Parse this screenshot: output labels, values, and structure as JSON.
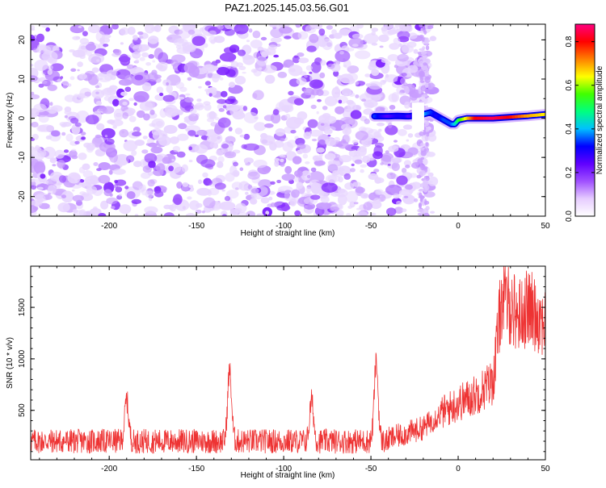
{
  "title": "PAZ1.2025.145.03.56.G01",
  "chart_data": [
    {
      "type": "heatmap",
      "title": "PAZ1.2025.145.03.56.G01",
      "xlabel": "Height of straight line (km)",
      "ylabel": "Frequency (Hz)",
      "xlim": [
        -245,
        50
      ],
      "ylim": [
        -25,
        24
      ],
      "xticks": [
        -200,
        -150,
        -100,
        -50,
        0,
        50
      ],
      "yticks": [
        -20,
        -10,
        0,
        10,
        20
      ],
      "colorbar": {
        "label": "Normalized spectral amplitude",
        "range": [
          0,
          0.88
        ],
        "ticks": [
          0.0,
          0.2,
          0.4,
          0.6,
          0.8
        ],
        "colormap": [
          "#ffffff",
          "#e6ccff",
          "#a050ff",
          "#6000ff",
          "#0000ff",
          "#00c0ff",
          "#00ff80",
          "#40ff00",
          "#ffff00",
          "#ff8000",
          "#ff0000",
          "#ff0080"
        ]
      },
      "noise_region": {
        "x": [
          -245,
          -18
        ],
        "amplitude": 0.08
      },
      "signal_ridge": {
        "x": [
          -48,
          -44,
          -40,
          -35,
          -30,
          -28,
          -20,
          -16,
          -12,
          -8,
          -4,
          -2,
          0,
          5,
          10,
          20,
          30,
          40,
          50
        ],
        "frequency": [
          0.5,
          0.5,
          0.5,
          0.6,
          0.5,
          0.5,
          1.0,
          1.5,
          0.5,
          -0.5,
          -1.5,
          -1.5,
          -0.5,
          0,
          0,
          0,
          0.3,
          0.6,
          1.0
        ],
        "amplitude": [
          0.35,
          0.3,
          0.25,
          0.3,
          0.3,
          0.25,
          0.4,
          0.35,
          0.3,
          0.35,
          0.35,
          0.4,
          0.5,
          0.65,
          0.8,
          0.85,
          0.8,
          0.7,
          0.65
        ]
      }
    },
    {
      "type": "line",
      "xlabel": "Height of straight line (km)",
      "ylabel": "SNR (10 * v/v)",
      "xlim": [
        -245,
        50
      ],
      "ylim": [
        20,
        1900
      ],
      "xticks": [
        -200,
        -150,
        -100,
        -50,
        0,
        50
      ],
      "yticks": [
        500,
        1000,
        1500
      ],
      "color": "#ee3333",
      "baseline": 200,
      "noise_amplitude": 120,
      "peaks": [
        {
          "x": -190,
          "y": 600
        },
        {
          "x": -131,
          "y": 880
        },
        {
          "x": -84,
          "y": 590
        },
        {
          "x": -47,
          "y": 960
        }
      ],
      "trend": {
        "x": [
          -40,
          -20,
          -10,
          0,
          10,
          20,
          25,
          35,
          40,
          50
        ],
        "y": [
          220,
          330,
          470,
          570,
          650,
          780,
          1600,
          1420,
          1500,
          1360
        ]
      }
    }
  ]
}
